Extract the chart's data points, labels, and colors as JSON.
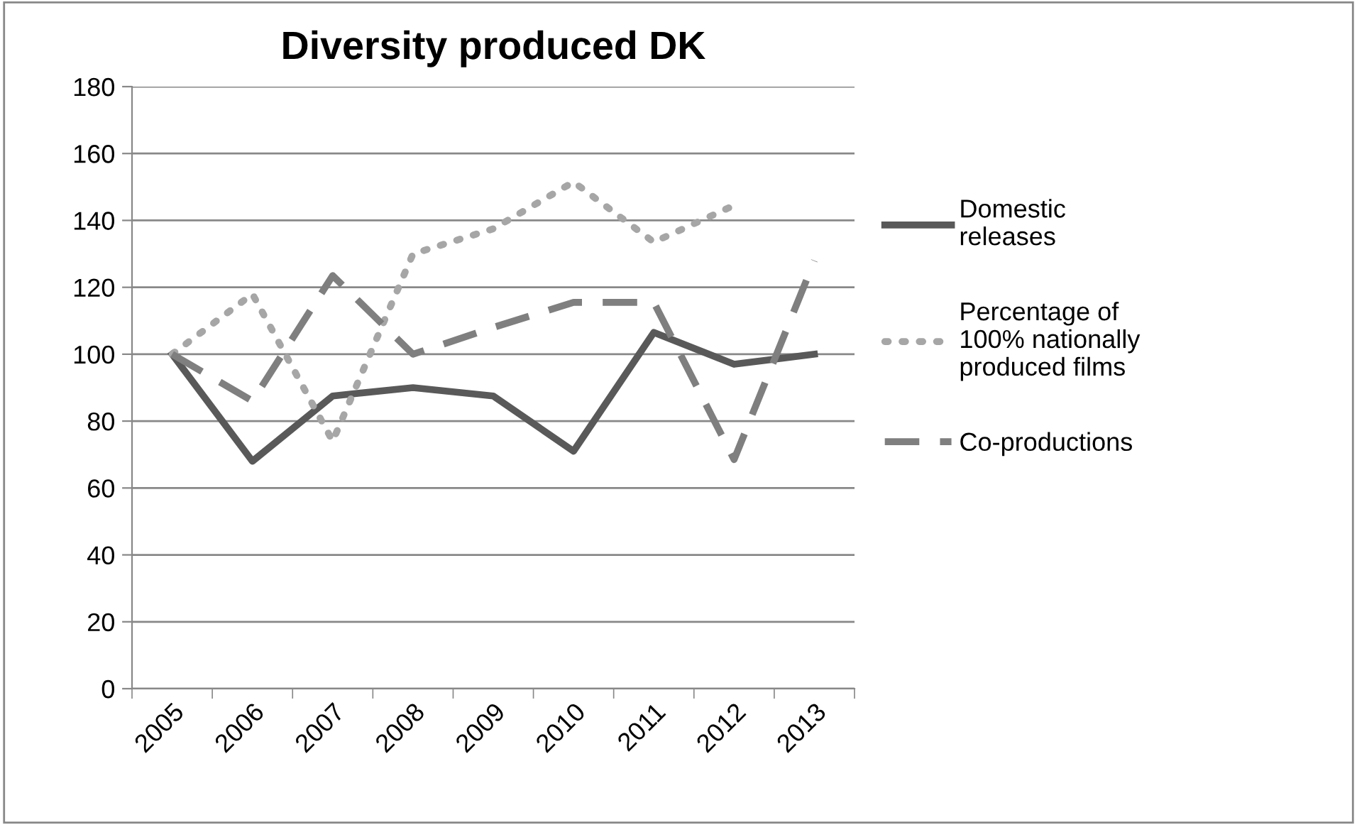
{
  "chart_data": {
    "type": "line",
    "title": "Diversity produced DK",
    "categories": [
      "2005",
      "2006",
      "2007",
      "2008",
      "2009",
      "2010",
      "2011",
      "2012",
      "2013"
    ],
    "series": [
      {
        "name": "Domestic releases",
        "color": "#595959",
        "line_style": "solid",
        "values": [
          100,
          68,
          87.5,
          90,
          87.5,
          71,
          106.5,
          97,
          100
        ]
      },
      {
        "name": "Percentage of 100% nationally produced films",
        "color": "#a6a6a6",
        "line_style": "dotted",
        "values": [
          100,
          118,
          74,
          130,
          137.5,
          151.5,
          133.5,
          144.5,
          null
        ]
      },
      {
        "name": "Co-productions",
        "color": "#7f7f7f",
        "line_style": "dashed",
        "values": [
          100,
          86,
          123.5,
          100,
          108,
          115.5,
          115.5,
          68.5,
          128
        ]
      }
    ],
    "ylim": [
      0,
      180
    ],
    "yticks": [
      0,
      20,
      40,
      60,
      80,
      100,
      120,
      140,
      160,
      180
    ],
    "grid": "y",
    "legend": "right",
    "marker": "none"
  }
}
